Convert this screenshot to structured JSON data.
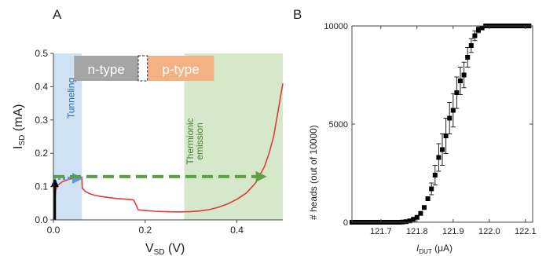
{
  "chart_data": [
    {
      "panel_label": "A",
      "type": "line",
      "xlabel_main": "V",
      "xlabel_sub": "SD",
      "xlabel_unit": " (V)",
      "ylabel_main": "I",
      "ylabel_sub": "SD",
      "ylabel_unit": " (mA)",
      "xlim": [
        0,
        0.5
      ],
      "ylim": [
        0,
        0.5
      ],
      "x_ticks": [
        "0.0",
        "0.2",
        "0.4"
      ],
      "x_tick_values": [
        0,
        0.2,
        0.4
      ],
      "y_ticks": [
        "0.0",
        "0.1",
        "0.2",
        "0.3",
        "0.4",
        "0.5"
      ],
      "y_tick_values": [
        0,
        0.1,
        0.2,
        0.3,
        0.4,
        0.5
      ],
      "regions": [
        {
          "label": "Tunneling",
          "x_range": [
            0,
            0.062
          ],
          "color": "#cfe2f3"
        },
        {
          "label_line1": "Thermionic",
          "label_line2": "emission",
          "x_range": [
            0.285,
            0.5
          ],
          "color": "#d5e8c9"
        }
      ],
      "type_labels": [
        {
          "label": "n-type",
          "x_range": [
            0.045,
            0.185
          ],
          "color": "#a5a5a5"
        },
        {
          "label": "p-type",
          "x_range": [
            0.205,
            0.35
          ],
          "color": "#f4b183"
        }
      ],
      "series": [
        {
          "color": "#e03a3a",
          "x": [
            0,
            0.005,
            0.01,
            0.02,
            0.03,
            0.04,
            0.05,
            0.06,
            0.062,
            0.063,
            0.07,
            0.08,
            0.09,
            0.1,
            0.12,
            0.14,
            0.16,
            0.175,
            0.18,
            0.185,
            0.2,
            0.22,
            0.24,
            0.26,
            0.28,
            0.3,
            0.32,
            0.34,
            0.36,
            0.38,
            0.4,
            0.42,
            0.44,
            0.46,
            0.47,
            0.48,
            0.49,
            0.5
          ],
          "y": [
            0,
            0.09,
            0.105,
            0.115,
            0.12,
            0.124,
            0.126,
            0.128,
            0.128,
            0.095,
            0.085,
            0.078,
            0.074,
            0.071,
            0.067,
            0.064,
            0.062,
            0.06,
            0.045,
            0.03,
            0.028,
            0.026,
            0.025,
            0.024,
            0.024,
            0.025,
            0.027,
            0.031,
            0.038,
            0.048,
            0.062,
            0.08,
            0.11,
            0.16,
            0.2,
            0.25,
            0.33,
            0.41
          ]
        }
      ],
      "arrows": [
        {
          "style": "solid",
          "color": "#000000",
          "x": [
            0.003,
            0.003
          ],
          "y": [
            0.0,
            0.12
          ]
        },
        {
          "style": "dotted",
          "color": "#5b9bd5",
          "x": [
            0.0,
            0.06
          ],
          "y": [
            0.125,
            0.125
          ]
        },
        {
          "style": "dashed",
          "color": "#5e9e44",
          "x": [
            0.0,
            0.46
          ],
          "y": [
            0.13,
            0.13
          ]
        }
      ],
      "grid": false
    },
    {
      "panel_label": "B",
      "type": "scatter",
      "xlabel_main": "I",
      "xlabel_sub": "DUT",
      "xlabel_unit": " (μA)",
      "ylabel": "# heads (out of 10000)",
      "xlim": [
        121.62,
        122.12
      ],
      "ylim": [
        0,
        10000
      ],
      "x_ticks": [
        "121.7",
        "121.8",
        "121.9",
        "122.0",
        "122.1"
      ],
      "x_tick_values": [
        121.7,
        121.8,
        121.9,
        122.0,
        122.1
      ],
      "y_ticks": [
        "0",
        "5000",
        "10000"
      ],
      "y_tick_values": [
        0,
        5000,
        10000
      ],
      "series": [
        {
          "marker": "square",
          "color": "#000000",
          "x": [
            121.62,
            121.63,
            121.64,
            121.65,
            121.66,
            121.67,
            121.68,
            121.69,
            121.7,
            121.71,
            121.72,
            121.73,
            121.74,
            121.75,
            121.76,
            121.77,
            121.78,
            121.79,
            121.8,
            121.81,
            121.82,
            121.83,
            121.84,
            121.85,
            121.86,
            121.87,
            121.88,
            121.89,
            121.9,
            121.91,
            121.92,
            121.93,
            121.94,
            121.95,
            121.96,
            121.97,
            121.98,
            121.99,
            122.0,
            122.01,
            122.02,
            122.03,
            122.04,
            122.05,
            122.06,
            122.07,
            122.08,
            122.09,
            122.1,
            122.11
          ],
          "y": [
            0,
            0,
            0,
            0,
            0,
            0,
            0,
            0,
            0,
            0,
            0,
            0,
            0,
            0,
            10,
            30,
            70,
            150,
            250,
            450,
            750,
            1200,
            1700,
            2400,
            3300,
            3700,
            4400,
            5300,
            5700,
            6600,
            7200,
            7500,
            8400,
            9000,
            9500,
            9800,
            9900,
            10000,
            10000,
            10000,
            10000,
            10000,
            10000,
            10000,
            10000,
            10000,
            10000,
            10000,
            10000,
            10000
          ],
          "err": [
            0,
            0,
            0,
            0,
            0,
            0,
            0,
            0,
            0,
            0,
            0,
            0,
            0,
            0,
            0,
            0,
            0,
            0,
            0,
            0,
            0,
            0,
            300,
            500,
            700,
            800,
            900,
            800,
            850,
            800,
            700,
            650,
            500,
            350,
            250,
            150,
            100,
            0,
            0,
            0,
            0,
            0,
            0,
            0,
            0,
            0,
            0,
            0,
            0,
            0
          ]
        }
      ],
      "grid": false
    }
  ]
}
